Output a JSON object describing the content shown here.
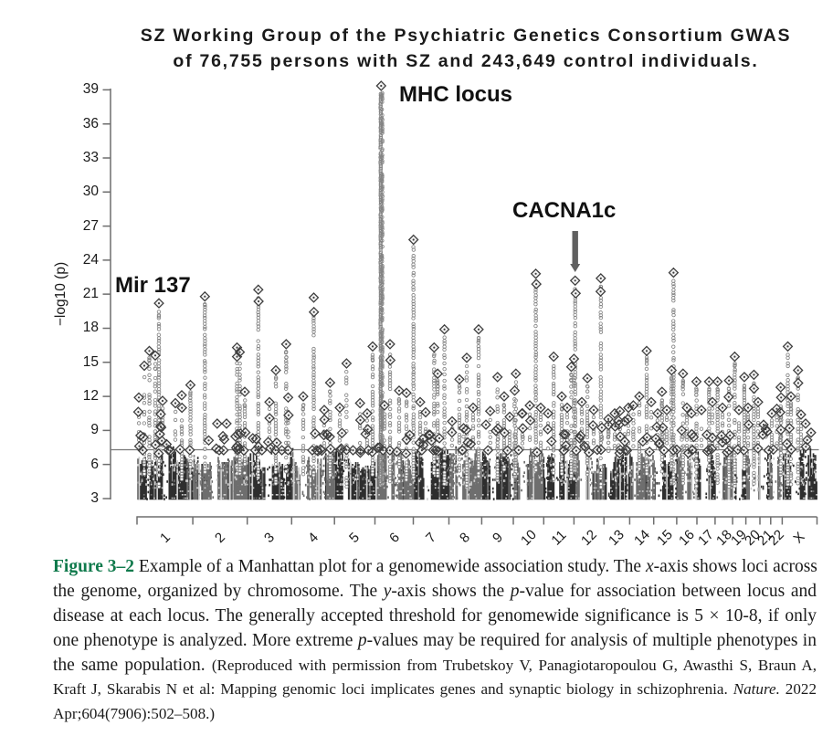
{
  "chart_data": {
    "type": "scatter",
    "subtype": "manhattan",
    "title_line1": "SZ Working Group of the Psychiatric Genetics Consortium GWAS",
    "title_line2": "of 76,755 persons with SZ and 243,649 control individuals.",
    "ylabel": "−log10 (p)",
    "yticks": [
      39,
      36,
      33,
      30,
      27,
      24,
      21,
      18,
      15,
      12,
      9,
      6,
      3
    ],
    "ylim": [
      3,
      39.5
    ],
    "xlabel": "",
    "x_axis": "chromosome",
    "grid": false,
    "legend": null,
    "threshold": 7.3,
    "threshold_note": "genomewide significance 5 × 10-8",
    "chromosomes": [
      {
        "label": "1",
        "length_mb": 249.25,
        "centromere_mb": 125.0
      },
      {
        "label": "2",
        "length_mb": 243.2,
        "centromere_mb": 93.3
      },
      {
        "label": "3",
        "length_mb": 198.02,
        "centromere_mb": 91.0
      },
      {
        "label": "4",
        "length_mb": 191.15,
        "centromere_mb": 50.4
      },
      {
        "label": "5",
        "length_mb": 180.92,
        "centromere_mb": 48.4
      },
      {
        "label": "6",
        "length_mb": 171.12,
        "centromere_mb": 61.0
      },
      {
        "label": "7",
        "length_mb": 159.14,
        "centromere_mb": 59.9
      },
      {
        "label": "8",
        "length_mb": 146.36,
        "centromere_mb": 45.6
      },
      {
        "label": "9",
        "length_mb": 141.21,
        "centromere_mb": 49.0
      },
      {
        "label": "10",
        "length_mb": 135.53,
        "centromere_mb": 40.2
      },
      {
        "label": "11",
        "length_mb": 135.01,
        "centromere_mb": 53.7
      },
      {
        "label": "12",
        "length_mb": 133.85,
        "centromere_mb": 35.8
      },
      {
        "label": "13",
        "length_mb": 115.17,
        "centromere_mb": 17.9
      },
      {
        "label": "14",
        "length_mb": 107.35,
        "centromere_mb": 17.6
      },
      {
        "label": "15",
        "length_mb": 102.53,
        "centromere_mb": 19.0
      },
      {
        "label": "16",
        "length_mb": 90.35,
        "centromere_mb": 36.6
      },
      {
        "label": "17",
        "length_mb": 81.2,
        "centromere_mb": 24.0
      },
      {
        "label": "18",
        "length_mb": 78.08,
        "centromere_mb": 17.2
      },
      {
        "label": "19",
        "length_mb": 59.13,
        "centromere_mb": 26.5
      },
      {
        "label": "20",
        "length_mb": 63.03,
        "centromere_mb": 27.5
      },
      {
        "label": "21",
        "length_mb": 48.13,
        "centromere_mb": 13.2
      },
      {
        "label": "22",
        "length_mb": 51.3,
        "centromere_mb": 14.7
      },
      {
        "label": "X",
        "length_mb": 155.27,
        "centromere_mb": 60.6
      }
    ],
    "annotations": [
      {
        "text": "Mir 137",
        "chr": "1",
        "mb": 97.9,
        "v": 20.2,
        "arrow": false
      },
      {
        "text": "MHC locus",
        "chr": "6",
        "mb": 27.6,
        "v": 39.4,
        "arrow": false
      },
      {
        "text": "CACNA1c",
        "chr": "12",
        "mb": 5.5,
        "v": 22.2,
        "arrow": true
      }
    ],
    "special_peaks": [
      {
        "name": "MHC",
        "chr": "6",
        "mb": 27.6,
        "v": 39.35
      },
      {
        "name": "chr7 lead",
        "chr": "7",
        "mb": 0.8,
        "v": 25.8
      }
    ],
    "peaks": [
      {
        "chr": "1",
        "mb": 8.2,
        "v": 11.9
      },
      {
        "chr": "1",
        "mb": 32.6,
        "v": 14.7
      },
      {
        "chr": "1",
        "mb": 55.1,
        "v": 16.0
      },
      {
        "chr": "1",
        "mb": 81.6,
        "v": 15.6
      },
      {
        "chr": "1",
        "mb": 97.9,
        "v": 20.2
      },
      {
        "chr": "1",
        "mb": 114.2,
        "v": 11.6
      },
      {
        "chr": "1",
        "mb": 171.3,
        "v": 11.4
      },
      {
        "chr": "1",
        "mb": 199.8,
        "v": 12.1
      },
      {
        "chr": "1",
        "mb": 238.6,
        "v": 13.0
      },
      {
        "chr": "2",
        "mb": 53.8,
        "v": 20.8
      },
      {
        "chr": "2",
        "mb": 108.8,
        "v": 9.6
      },
      {
        "chr": "2",
        "mb": 150.4,
        "v": 9.6
      },
      {
        "chr": "2",
        "mb": 197.3,
        "v": 16.3
      },
      {
        "chr": "2",
        "mb": 209.6,
        "v": 15.9
      },
      {
        "chr": "2",
        "mb": 232.0,
        "v": 12.4
      },
      {
        "chr": "3",
        "mb": 49.1,
        "v": 21.4
      },
      {
        "chr": "3",
        "mb": 98.9,
        "v": 11.5
      },
      {
        "chr": "3",
        "mb": 127.5,
        "v": 14.3
      },
      {
        "chr": "3",
        "mb": 173.5,
        "v": 16.6
      },
      {
        "chr": "3",
        "mb": 182.5,
        "v": 11.9
      },
      {
        "chr": "4",
        "mb": 51.8,
        "v": 12.0
      },
      {
        "chr": "4",
        "mb": 98.7,
        "v": 20.7
      },
      {
        "chr": "4",
        "mb": 145.6,
        "v": 10.8
      },
      {
        "chr": "4",
        "mb": 171.7,
        "v": 13.2
      },
      {
        "chr": "5",
        "mb": 23.8,
        "v": 11.0
      },
      {
        "chr": "5",
        "mb": 53.9,
        "v": 14.9
      },
      {
        "chr": "5",
        "mb": 114.3,
        "v": 11.4
      },
      {
        "chr": "5",
        "mb": 146.1,
        "v": 10.5
      },
      {
        "chr": "5",
        "mb": 170.6,
        "v": 16.4
      },
      {
        "chr": "6",
        "mb": 42.7,
        "v": 11.2
      },
      {
        "chr": "6",
        "mb": 67.2,
        "v": 16.6
      },
      {
        "chr": "6",
        "mb": 107.9,
        "v": 12.5
      },
      {
        "chr": "6",
        "mb": 140.6,
        "v": 12.3
      },
      {
        "chr": "7",
        "mb": 0.8,
        "v": 25.8
      },
      {
        "chr": "7",
        "mb": 30.6,
        "v": 11.5
      },
      {
        "chr": "7",
        "mb": 55.1,
        "v": 10.6
      },
      {
        "chr": "7",
        "mb": 93.0,
        "v": 16.3
      },
      {
        "chr": "7",
        "mb": 108.9,
        "v": 14.0
      },
      {
        "chr": "7",
        "mb": 139.1,
        "v": 17.9
      },
      {
        "chr": "8",
        "mb": 14.2,
        "v": 9.8
      },
      {
        "chr": "8",
        "mb": 46.8,
        "v": 13.5
      },
      {
        "chr": "8",
        "mb": 79.5,
        "v": 15.4
      },
      {
        "chr": "8",
        "mb": 108.0,
        "v": 11.0
      },
      {
        "chr": "8",
        "mb": 132.5,
        "v": 17.9
      },
      {
        "chr": "9",
        "mb": 18.8,
        "v": 9.5
      },
      {
        "chr": "9",
        "mb": 37.9,
        "v": 10.7
      },
      {
        "chr": "9",
        "mb": 70.5,
        "v": 13.7
      },
      {
        "chr": "9",
        "mb": 100.3,
        "v": 12.0
      },
      {
        "chr": "9",
        "mb": 124.8,
        "v": 10.2
      },
      {
        "chr": "10",
        "mb": 6.0,
        "v": 12.5
      },
      {
        "chr": "10",
        "mb": 11.3,
        "v": 14.0
      },
      {
        "chr": "10",
        "mb": 40.7,
        "v": 10.5
      },
      {
        "chr": "10",
        "mb": 73.3,
        "v": 11.2
      },
      {
        "chr": "10",
        "mb": 100.2,
        "v": 22.8
      },
      {
        "chr": "10",
        "mb": 122.2,
        "v": 11.0
      },
      {
        "chr": "11",
        "mb": 19.3,
        "v": 10.5
      },
      {
        "chr": "11",
        "mb": 44.6,
        "v": 15.5
      },
      {
        "chr": "11",
        "mb": 80.5,
        "v": 12.0
      },
      {
        "chr": "11",
        "mb": 105.0,
        "v": 11.0
      },
      {
        "chr": "11",
        "mb": 123.3,
        "v": 14.6
      },
      {
        "chr": "12",
        "mb": 0.2,
        "v": 15.3
      },
      {
        "chr": "12",
        "mb": 5.5,
        "v": 22.2
      },
      {
        "chr": "12",
        "mb": 35.2,
        "v": 11.5
      },
      {
        "chr": "12",
        "mb": 60.1,
        "v": 13.6
      },
      {
        "chr": "12",
        "mb": 88.2,
        "v": 10.8
      },
      {
        "chr": "12",
        "mb": 120.1,
        "v": 22.4
      },
      {
        "chr": "13",
        "mb": 19.6,
        "v": 10.0
      },
      {
        "chr": "13",
        "mb": 48.2,
        "v": 10.5
      },
      {
        "chr": "13",
        "mb": 71.4,
        "v": 10.7
      },
      {
        "chr": "13",
        "mb": 93.1,
        "v": 9.8
      },
      {
        "chr": "13",
        "mb": 109.4,
        "v": 11.0
      },
      {
        "chr": "14",
        "mb": 16.2,
        "v": 11.2
      },
      {
        "chr": "14",
        "mb": 43.1,
        "v": 12.0
      },
      {
        "chr": "14",
        "mb": 75.8,
        "v": 16.0
      },
      {
        "chr": "14",
        "mb": 96.2,
        "v": 11.5
      },
      {
        "chr": "15",
        "mb": 17.4,
        "v": 10.5
      },
      {
        "chr": "15",
        "mb": 36.9,
        "v": 12.4
      },
      {
        "chr": "15",
        "mb": 58.1,
        "v": 10.8
      },
      {
        "chr": "15",
        "mb": 79.8,
        "v": 14.3
      },
      {
        "chr": "15",
        "mb": 88.3,
        "v": 22.9
      },
      {
        "chr": "16",
        "mb": 28.2,
        "v": 14.0
      },
      {
        "chr": "16",
        "mb": 45.3,
        "v": 11.0
      },
      {
        "chr": "16",
        "mb": 65.7,
        "v": 10.5
      },
      {
        "chr": "16",
        "mb": 88.2,
        "v": 13.3
      },
      {
        "chr": "17",
        "mb": 20.2,
        "v": 10.8
      },
      {
        "chr": "17",
        "mb": 54.1,
        "v": 13.3
      },
      {
        "chr": "17",
        "mb": 69.2,
        "v": 11.5
      },
      {
        "chr": "18",
        "mb": 10.8,
        "v": 13.3
      },
      {
        "chr": "18",
        "mb": 32.8,
        "v": 11.0
      },
      {
        "chr": "18",
        "mb": 61.8,
        "v": 13.4
      },
      {
        "chr": "19",
        "mb": 9.4,
        "v": 15.5
      },
      {
        "chr": "19",
        "mb": 28.2,
        "v": 10.8
      },
      {
        "chr": "19",
        "mb": 52.2,
        "v": 13.7
      },
      {
        "chr": "20",
        "mb": 9.8,
        "v": 11.0
      },
      {
        "chr": "20",
        "mb": 35.9,
        "v": 13.9
      },
      {
        "chr": "20",
        "mb": 54.7,
        "v": 11.5
      },
      {
        "chr": "21",
        "mb": 16.1,
        "v": 9.5
      },
      {
        "chr": "21",
        "mb": 32.4,
        "v": 8.9
      },
      {
        "chr": "22",
        "mb": 4.7,
        "v": 10.5
      },
      {
        "chr": "22",
        "mb": 27.1,
        "v": 10.9
      },
      {
        "chr": "22",
        "mb": 44.3,
        "v": 12.8
      },
      {
        "chr": "22",
        "mb": 46.3,
        "v": 11.9
      },
      {
        "chr": "22",
        "mb": 42.2,
        "v": 10.6
      },
      {
        "chr": "X",
        "mb": 24.8,
        "v": 16.4
      },
      {
        "chr": "X",
        "mb": 32.5,
        "v": 9.2
      },
      {
        "chr": "X",
        "mb": 39.0,
        "v": 12.0
      },
      {
        "chr": "X",
        "mb": 70.4,
        "v": 14.3
      },
      {
        "chr": "X",
        "mb": 83.9,
        "v": 10.4
      },
      {
        "chr": "X",
        "mb": 104.3,
        "v": 9.6
      },
      {
        "chr": "X",
        "mb": 128.8,
        "v": 8.8
      }
    ]
  },
  "caption": {
    "label": "Figure 3–2",
    "lines": [
      [
        {
          "t": "Figure 3–2",
          "s": "bg"
        },
        {
          "t": " Example of a Manhattan plot for a genomewide association study. The ",
          "s": "n"
        },
        {
          "t": "x",
          "s": "i"
        },
        {
          "t": "-axis shows loci across",
          "s": "n"
        }
      ],
      [
        {
          "t": "the genome, organized by chromosome. The ",
          "s": "n"
        },
        {
          "t": "y",
          "s": "i"
        },
        {
          "t": "-axis shows the ",
          "s": "n"
        },
        {
          "t": "p",
          "s": "i"
        },
        {
          "t": "-value for association between locus and",
          "s": "n"
        }
      ],
      [
        {
          "t": "disease at each locus. The generally accepted threshold for genomewide significance is 5 × 10-8, if only",
          "s": "n"
        }
      ],
      [
        {
          "t": "one phenotype is analyzed. More extreme ",
          "s": "n"
        },
        {
          "t": "p",
          "s": "i"
        },
        {
          "t": "-values may be required for analysis of multiple phenotypes in",
          "s": "n"
        }
      ],
      [
        {
          "t": "the same population. ",
          "s": "n"
        },
        {
          "t": "(Reproduced with permission from Trubetskoy V, Panagiotaropoulou G, Awasthi S, Braun A,",
          "s": "sm"
        }
      ],
      [
        {
          "t": "Kraft J, Skarabis N et al: Mapping genomic loci implicates genes and synaptic biology in schizophrenia. ",
          "s": "sm"
        },
        {
          "t": "Nature.",
          "s": "smi"
        },
        {
          "t": " 2022",
          "s": "sm"
        }
      ],
      [
        {
          "t": "Apr;604(7906):502–508.)",
          "s": "sm"
        }
      ]
    ]
  },
  "style": {
    "background": "#ffffff",
    "text_color": "#1a1a1a",
    "figure_label_color": "#107a4c",
    "axis_color": "#6e6e6e",
    "threshold_line_color": "#787878",
    "point_dark": "#2e2e2e",
    "point_gray": "#6e6e6e",
    "speckle_light": "#cdcdcd",
    "diamond_stroke": "#3f3f3f",
    "diamond_fill": "#f2f2f2",
    "streak_stroke": "#848484",
    "streak_fill": "#fdfdfd",
    "arrow_color": "#606060"
  },
  "render": {
    "seed": 1337,
    "band_col_step": 1.1,
    "band_row_step": 0.155,
    "nearline_density": 0.18,
    "diamond_half": 4.9,
    "streak_radius": 1.75
  }
}
